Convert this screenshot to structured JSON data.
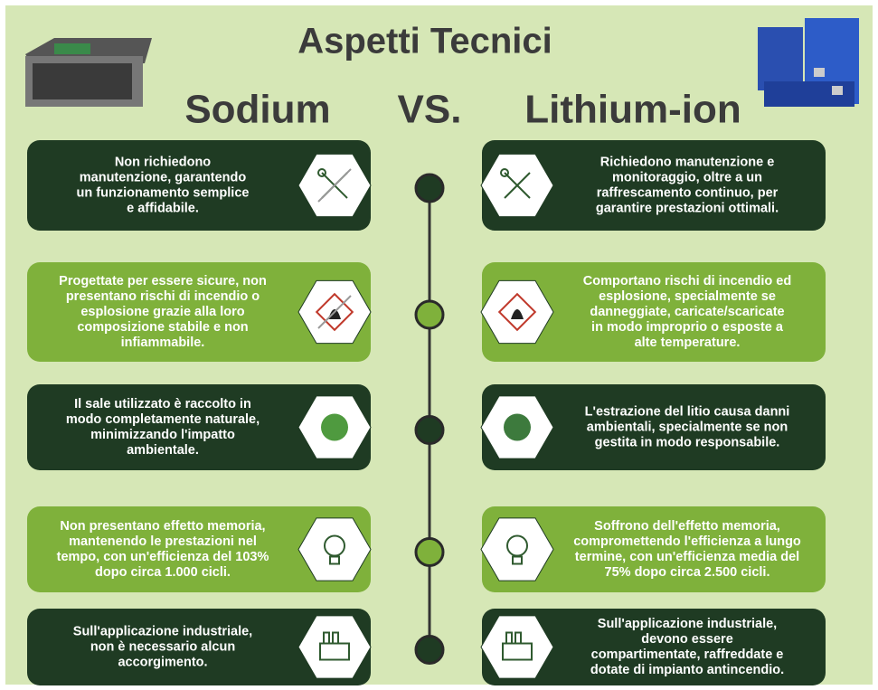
{
  "header": {
    "title": "Aspetti Tecnici",
    "left": "Sodium",
    "vs": "VS.",
    "right": "Lithium-ion"
  },
  "rows": [
    {
      "left": [
        "Non richiedono",
        "manutenzione, garantendo",
        "un funzionamento semplice",
        "e affidabile."
      ],
      "right": [
        "Richiedono manutenzione e",
        "monitoraggio, oltre a un",
        "raffrescamento continuo, per",
        "garantire prestazioni ottimali."
      ]
    },
    {
      "left": [
        "Progettate per essere sicure, non",
        "presentano rischi di incendio o",
        "esplosione grazie alla loro",
        "composizione stabile e non",
        "infiammabile."
      ],
      "right": [
        "Comportano rischi di incendio ed",
        "esplosione, specialmente se",
        "danneggiate, caricate/scaricate",
        "in modo improprio o esposte a",
        "alte temperature."
      ]
    },
    {
      "left": [
        "Il sale utilizzato è raccolto in",
        "modo completamente naturale,",
        "minimizzando l'impatto",
        "ambientale."
      ],
      "right": [
        "L'estrazione del litio causa danni",
        "ambientali, specialmente se non",
        "gestita in modo responsabile."
      ]
    },
    {
      "left": [
        "Non presentano effetto memoria,",
        "mantenendo le prestazioni nel",
        "tempo, con un'efficienza del 103%",
        "dopo circa 1.000 cicli."
      ],
      "right": [
        "Soffrono dell'effetto memoria,",
        "compromettendo l'efficienza a lungo",
        "termine, con un'efficienza media del",
        "75% dopo circa 2.500 cicli."
      ]
    },
    {
      "left": [
        "Sull'applicazione industriale,",
        "non è necessario alcun",
        "accorgimento."
      ],
      "right": [
        "Sull'applicazione  industriale,",
        "devono essere",
        "compartimentate, raffreddate e",
        "dotate di impianto antincendio."
      ]
    }
  ]
}
